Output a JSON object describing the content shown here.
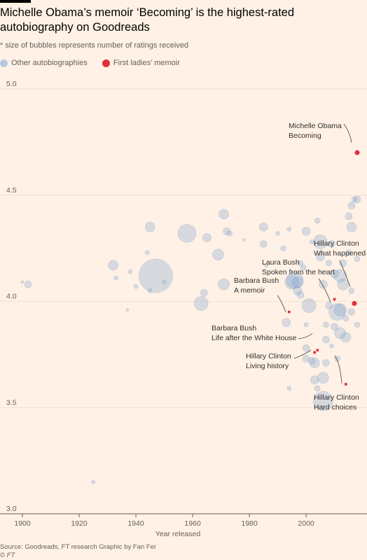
{
  "title": "Michelle Obama’s memoir ‘Becoming’ is the highest-rated autobiography on Goodreads",
  "subtitle": "* size of bubbles represents number of ratings received",
  "legend": {
    "other": "Other autobiographies",
    "first_ladies": "First ladies’ memoir"
  },
  "colors": {
    "other": "#7ba1cc",
    "first_ladies": "#e0303e",
    "background": "#fff1e5",
    "gridline": "#f2dfce"
  },
  "footer": {
    "source": "Source: Goodreads, FT research  Graphic by Fan Fei",
    "copyright": "© FT"
  },
  "chart_data": {
    "type": "scatter",
    "xlabel": "Year released",
    "ylabel": "",
    "xlim": [
      1900,
      2018
    ],
    "ylim": [
      3.0,
      5.0
    ],
    "x_ticks": [
      "1900",
      "1920",
      "1940",
      "1960",
      "1980",
      "2000"
    ],
    "y_ticks": [
      "5.0",
      "4.5",
      "4.0",
      "3.5",
      "3.0"
    ],
    "size_encoding": "number of ratings received",
    "series": [
      {
        "name": "First ladies’ memoir",
        "points": [
          {
            "x": 2018,
            "y": 4.7,
            "label": [
              "Michelle Obama",
              "Becoming"
            ]
          },
          {
            "x": 2017,
            "y": 3.99,
            "label": [
              "Hillary Clinton",
              "What happened"
            ]
          },
          {
            "x": 2010,
            "y": 4.01,
            "label": [
              "Laura Bush",
              "Spoken from the heart"
            ]
          },
          {
            "x": 1994,
            "y": 3.95,
            "label": [
              "Barbara Bush",
              "A memoir"
            ]
          },
          {
            "x": 2004,
            "y": 3.77,
            "label": [
              "Barbara Bush",
              "Life after the White House"
            ]
          },
          {
            "x": 2003,
            "y": 3.76,
            "label": [
              "Hillary Clinton",
              "Living history"
            ]
          },
          {
            "x": 2014,
            "y": 3.61,
            "label": [
              "Hillary Clinton",
              "Hard choices"
            ]
          }
        ]
      },
      {
        "name": "Other autobiographies",
        "points": [
          {
            "x": 1900,
            "y": 4.09,
            "r": 2
          },
          {
            "x": 1902,
            "y": 4.08,
            "r": 5
          },
          {
            "x": 1925,
            "y": 3.15,
            "r": 2.5
          },
          {
            "x": 1932,
            "y": 4.17,
            "r": 7
          },
          {
            "x": 1933,
            "y": 4.11,
            "r": 3
          },
          {
            "x": 1937,
            "y": 3.96,
            "r": 2
          },
          {
            "x": 1938,
            "y": 4.14,
            "r": 3
          },
          {
            "x": 1940,
            "y": 4.07,
            "r": 3
          },
          {
            "x": 1944,
            "y": 4.23,
            "r": 3
          },
          {
            "x": 1945,
            "y": 4.35,
            "r": 7
          },
          {
            "x": 1947,
            "y": 4.12,
            "r": 24
          },
          {
            "x": 1945,
            "y": 4.05,
            "r": 3
          },
          {
            "x": 1950,
            "y": 4.09,
            "r": 3
          },
          {
            "x": 1958,
            "y": 4.32,
            "r": 13
          },
          {
            "x": 1963,
            "y": 3.99,
            "r": 10
          },
          {
            "x": 1964,
            "y": 4.04,
            "r": 5
          },
          {
            "x": 1965,
            "y": 4.3,
            "r": 6
          },
          {
            "x": 1969,
            "y": 4.22,
            "r": 8
          },
          {
            "x": 1971,
            "y": 4.41,
            "r": 7
          },
          {
            "x": 1971,
            "y": 4.08,
            "r": 8
          },
          {
            "x": 1972,
            "y": 4.33,
            "r": 5
          },
          {
            "x": 1973,
            "y": 4.32,
            "r": 4
          },
          {
            "x": 1978,
            "y": 4.29,
            "r": 2
          },
          {
            "x": 1985,
            "y": 4.35,
            "r": 6
          },
          {
            "x": 1985,
            "y": 4.27,
            "r": 5
          },
          {
            "x": 1986,
            "y": 4.17,
            "r": 3
          },
          {
            "x": 1990,
            "y": 4.32,
            "r": 3
          },
          {
            "x": 1992,
            "y": 4.25,
            "r": 4
          },
          {
            "x": 1993,
            "y": 3.9,
            "r": 6
          },
          {
            "x": 1994,
            "y": 3.59,
            "r": 3
          },
          {
            "x": 1994,
            "y": 4.34,
            "r": 3
          },
          {
            "x": 1995,
            "y": 4.09,
            "r": 10
          },
          {
            "x": 1996,
            "y": 4.1,
            "r": 12
          },
          {
            "x": 1997,
            "y": 4.09,
            "r": 8
          },
          {
            "x": 1997,
            "y": 4.05,
            "r": 6
          },
          {
            "x": 1998,
            "y": 4.03,
            "r": 5
          },
          {
            "x": 1998,
            "y": 4.18,
            "r": 4
          },
          {
            "x": 1999,
            "y": 4.16,
            "r": 4
          },
          {
            "x": 2000,
            "y": 4.33,
            "r": 6
          },
          {
            "x": 2000,
            "y": 3.89,
            "r": 3
          },
          {
            "x": 2000,
            "y": 3.78,
            "r": 5
          },
          {
            "x": 2000,
            "y": 3.73,
            "r": 5
          },
          {
            "x": 2001,
            "y": 3.98,
            "r": 10
          },
          {
            "x": 2002,
            "y": 4.28,
            "r": 3
          },
          {
            "x": 2002,
            "y": 3.72,
            "r": 5
          },
          {
            "x": 2003,
            "y": 3.71,
            "r": 7
          },
          {
            "x": 2003,
            "y": 3.63,
            "r": 6
          },
          {
            "x": 2004,
            "y": 4.38,
            "r": 4
          },
          {
            "x": 2004,
            "y": 3.59,
            "r": 4
          },
          {
            "x": 2005,
            "y": 4.28,
            "r": 10
          },
          {
            "x": 2005,
            "y": 4.21,
            "r": 6
          },
          {
            "x": 2006,
            "y": 3.64,
            "r": 8
          },
          {
            "x": 2006,
            "y": 3.53,
            "r": 14
          },
          {
            "x": 2006,
            "y": 4.08,
            "r": 6
          },
          {
            "x": 2007,
            "y": 3.89,
            "r": 4
          },
          {
            "x": 2007,
            "y": 3.82,
            "r": 5
          },
          {
            "x": 2007,
            "y": 3.71,
            "r": 5
          },
          {
            "x": 2008,
            "y": 4.18,
            "r": 4
          },
          {
            "x": 2008,
            "y": 3.98,
            "r": 5
          },
          {
            "x": 2009,
            "y": 4.27,
            "r": 5
          },
          {
            "x": 2009,
            "y": 3.79,
            "r": 3
          },
          {
            "x": 2010,
            "y": 4.13,
            "r": 6
          },
          {
            "x": 2010,
            "y": 3.88,
            "r": 5
          },
          {
            "x": 2011,
            "y": 3.95,
            "r": 12
          },
          {
            "x": 2011,
            "y": 3.73,
            "r": 4
          },
          {
            "x": 2012,
            "y": 4.12,
            "r": 9
          },
          {
            "x": 2012,
            "y": 3.96,
            "r": 9
          },
          {
            "x": 2012,
            "y": 3.85,
            "r": 8
          },
          {
            "x": 2013,
            "y": 4.18,
            "r": 5
          },
          {
            "x": 2013,
            "y": 4.08,
            "r": 8
          },
          {
            "x": 2014,
            "y": 3.83,
            "r": 7
          },
          {
            "x": 2014,
            "y": 3.92,
            "r": 4
          },
          {
            "x": 2015,
            "y": 4.4,
            "r": 5
          },
          {
            "x": 2015,
            "y": 4.23,
            "r": 4
          },
          {
            "x": 2016,
            "y": 4.45,
            "r": 5
          },
          {
            "x": 2016,
            "y": 4.35,
            "r": 7
          },
          {
            "x": 2016,
            "y": 4.05,
            "r": 4
          },
          {
            "x": 2016,
            "y": 3.95,
            "r": 5
          },
          {
            "x": 2017,
            "y": 4.48,
            "r": 4
          },
          {
            "x": 2018,
            "y": 4.48,
            "r": 5
          },
          {
            "x": 2018,
            "y": 4.2,
            "r": 4
          },
          {
            "x": 2018,
            "y": 3.89,
            "r": 4
          }
        ]
      }
    ]
  }
}
